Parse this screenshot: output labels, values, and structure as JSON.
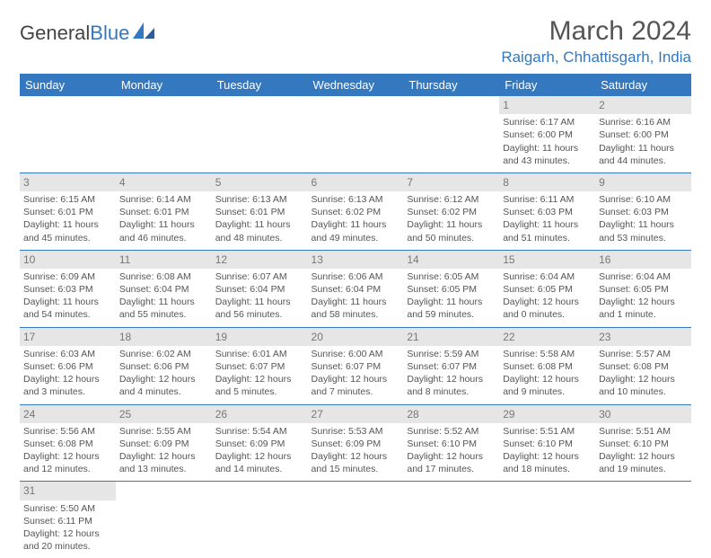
{
  "logo": {
    "text1": "General",
    "text2": "Blue"
  },
  "title": "March 2024",
  "location": "Raigarh, Chhattisgarh, India",
  "colors": {
    "header_bg": "#3478c0",
    "header_fg": "#ffffff",
    "daynum_bg": "#e6e6e6",
    "daynum_fg": "#777777",
    "row_border": "#3478c0",
    "body_text": "#555555",
    "accent": "#3478c0"
  },
  "weekdays": [
    "Sunday",
    "Monday",
    "Tuesday",
    "Wednesday",
    "Thursday",
    "Friday",
    "Saturday"
  ],
  "weeks": [
    [
      null,
      null,
      null,
      null,
      null,
      {
        "d": "1",
        "sr": "6:17 AM",
        "ss": "6:00 PM",
        "dl": "11 hours and 43 minutes."
      },
      {
        "d": "2",
        "sr": "6:16 AM",
        "ss": "6:00 PM",
        "dl": "11 hours and 44 minutes."
      }
    ],
    [
      {
        "d": "3",
        "sr": "6:15 AM",
        "ss": "6:01 PM",
        "dl": "11 hours and 45 minutes."
      },
      {
        "d": "4",
        "sr": "6:14 AM",
        "ss": "6:01 PM",
        "dl": "11 hours and 46 minutes."
      },
      {
        "d": "5",
        "sr": "6:13 AM",
        "ss": "6:01 PM",
        "dl": "11 hours and 48 minutes."
      },
      {
        "d": "6",
        "sr": "6:13 AM",
        "ss": "6:02 PM",
        "dl": "11 hours and 49 minutes."
      },
      {
        "d": "7",
        "sr": "6:12 AM",
        "ss": "6:02 PM",
        "dl": "11 hours and 50 minutes."
      },
      {
        "d": "8",
        "sr": "6:11 AM",
        "ss": "6:03 PM",
        "dl": "11 hours and 51 minutes."
      },
      {
        "d": "9",
        "sr": "6:10 AM",
        "ss": "6:03 PM",
        "dl": "11 hours and 53 minutes."
      }
    ],
    [
      {
        "d": "10",
        "sr": "6:09 AM",
        "ss": "6:03 PM",
        "dl": "11 hours and 54 minutes."
      },
      {
        "d": "11",
        "sr": "6:08 AM",
        "ss": "6:04 PM",
        "dl": "11 hours and 55 minutes."
      },
      {
        "d": "12",
        "sr": "6:07 AM",
        "ss": "6:04 PM",
        "dl": "11 hours and 56 minutes."
      },
      {
        "d": "13",
        "sr": "6:06 AM",
        "ss": "6:04 PM",
        "dl": "11 hours and 58 minutes."
      },
      {
        "d": "14",
        "sr": "6:05 AM",
        "ss": "6:05 PM",
        "dl": "11 hours and 59 minutes."
      },
      {
        "d": "15",
        "sr": "6:04 AM",
        "ss": "6:05 PM",
        "dl": "12 hours and 0 minutes."
      },
      {
        "d": "16",
        "sr": "6:04 AM",
        "ss": "6:05 PM",
        "dl": "12 hours and 1 minute."
      }
    ],
    [
      {
        "d": "17",
        "sr": "6:03 AM",
        "ss": "6:06 PM",
        "dl": "12 hours and 3 minutes."
      },
      {
        "d": "18",
        "sr": "6:02 AM",
        "ss": "6:06 PM",
        "dl": "12 hours and 4 minutes."
      },
      {
        "d": "19",
        "sr": "6:01 AM",
        "ss": "6:07 PM",
        "dl": "12 hours and 5 minutes."
      },
      {
        "d": "20",
        "sr": "6:00 AM",
        "ss": "6:07 PM",
        "dl": "12 hours and 7 minutes."
      },
      {
        "d": "21",
        "sr": "5:59 AM",
        "ss": "6:07 PM",
        "dl": "12 hours and 8 minutes."
      },
      {
        "d": "22",
        "sr": "5:58 AM",
        "ss": "6:08 PM",
        "dl": "12 hours and 9 minutes."
      },
      {
        "d": "23",
        "sr": "5:57 AM",
        "ss": "6:08 PM",
        "dl": "12 hours and 10 minutes."
      }
    ],
    [
      {
        "d": "24",
        "sr": "5:56 AM",
        "ss": "6:08 PM",
        "dl": "12 hours and 12 minutes."
      },
      {
        "d": "25",
        "sr": "5:55 AM",
        "ss": "6:09 PM",
        "dl": "12 hours and 13 minutes."
      },
      {
        "d": "26",
        "sr": "5:54 AM",
        "ss": "6:09 PM",
        "dl": "12 hours and 14 minutes."
      },
      {
        "d": "27",
        "sr": "5:53 AM",
        "ss": "6:09 PM",
        "dl": "12 hours and 15 minutes."
      },
      {
        "d": "28",
        "sr": "5:52 AM",
        "ss": "6:10 PM",
        "dl": "12 hours and 17 minutes."
      },
      {
        "d": "29",
        "sr": "5:51 AM",
        "ss": "6:10 PM",
        "dl": "12 hours and 18 minutes."
      },
      {
        "d": "30",
        "sr": "5:51 AM",
        "ss": "6:10 PM",
        "dl": "12 hours and 19 minutes."
      }
    ],
    [
      {
        "d": "31",
        "sr": "5:50 AM",
        "ss": "6:11 PM",
        "dl": "12 hours and 20 minutes."
      },
      null,
      null,
      null,
      null,
      null,
      null
    ]
  ],
  "labels": {
    "sunrise": "Sunrise:",
    "sunset": "Sunset:",
    "daylight": "Daylight:"
  }
}
